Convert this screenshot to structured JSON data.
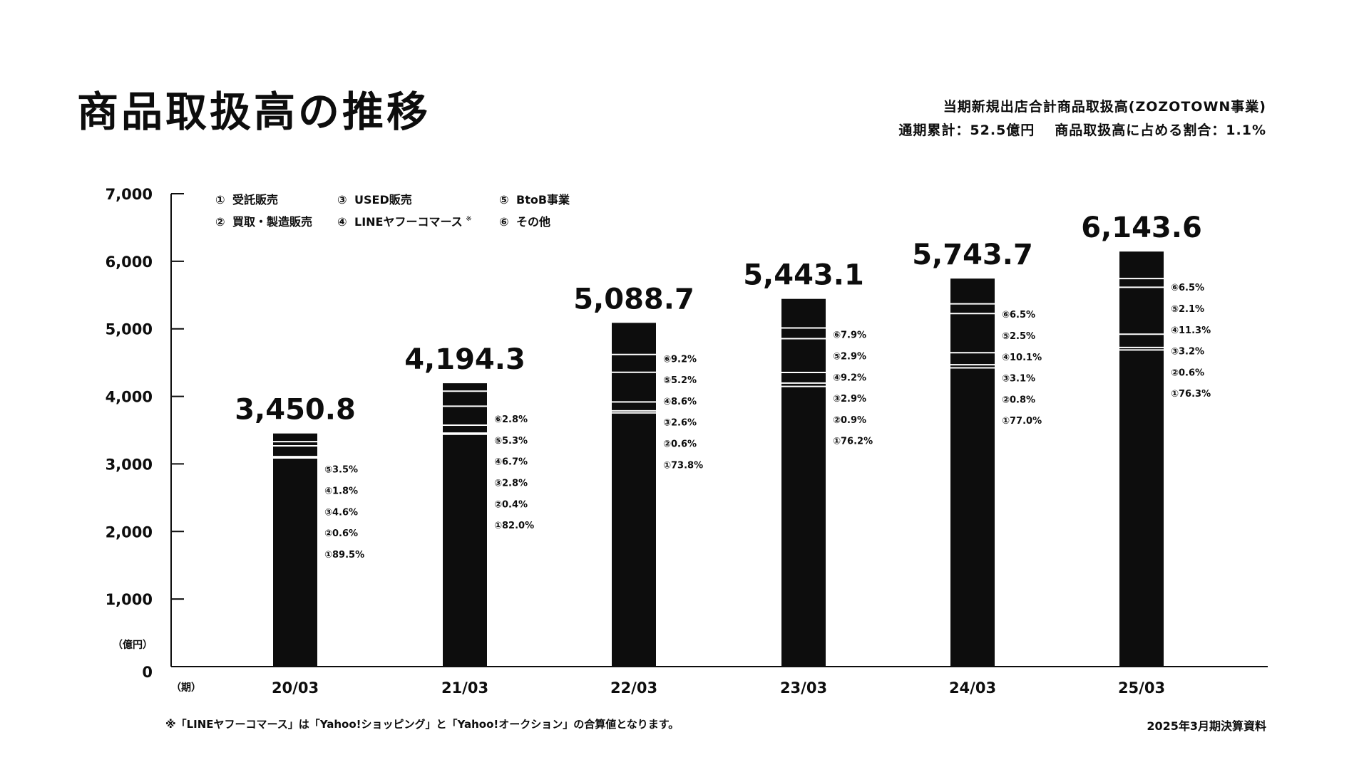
{
  "page": {
    "title": "商品取扱高の推移",
    "note_line1": "当期新規出店合計商品取扱高(ZOZOTOWN事業)",
    "note_line2_a": "通期累計：52.5億円",
    "note_line2_b": "商品取扱高に占める割合：1.1%",
    "footnote": "※「LINEヤフーコマース」は「Yahoo!ショッピング」と「Yahoo!オークション」の合算値となります。",
    "source": "2025年3月期決算資料"
  },
  "colors": {
    "bar": "#0d0d0d",
    "separator": "#ffffff",
    "text": "#0d0d0d"
  },
  "chart_data": {
    "type": "bar",
    "stacked": true,
    "unit_label": "（億円）",
    "period_label": "（期）",
    "ylim": [
      0,
      7000
    ],
    "yticks": [
      "0",
      "1,000",
      "2,000",
      "3,000",
      "4,000",
      "5,000",
      "6,000",
      "7,000"
    ],
    "categories": [
      "20/03",
      "21/03",
      "22/03",
      "23/03",
      "24/03",
      "25/03"
    ],
    "totals": [
      3450.8,
      4194.3,
      5088.7,
      5443.1,
      5743.7,
      6143.6
    ],
    "total_labels": [
      "3,450.8",
      "4,194.3",
      "5,088.7",
      "5,443.1",
      "5,743.7",
      "6,143.6"
    ],
    "legend": [
      {
        "mark": "①",
        "name": "受託販売"
      },
      {
        "mark": "②",
        "name": "買取・製造販売"
      },
      {
        "mark": "③",
        "name": "USED販売"
      },
      {
        "mark": "④",
        "name": "LINEヤフーコマース",
        "sup": "※"
      },
      {
        "mark": "⑤",
        "name": "BtoB事業"
      },
      {
        "mark": "⑥",
        "name": "その他"
      }
    ],
    "series_marks": [
      "①",
      "②",
      "③",
      "④",
      "⑤",
      "⑥"
    ],
    "series_names": [
      "受託販売",
      "買取・製造販売",
      "USED販売",
      "LINEヤフーコマース",
      "BtoB事業",
      "その他"
    ],
    "shares": [
      [
        89.5,
        0.6,
        4.6,
        1.8,
        3.5,
        null
      ],
      [
        82.0,
        0.4,
        2.8,
        6.7,
        5.3,
        2.8
      ],
      [
        73.8,
        0.6,
        2.6,
        8.6,
        5.2,
        9.2
      ],
      [
        76.2,
        0.9,
        2.9,
        9.2,
        2.9,
        7.9
      ],
      [
        77.0,
        0.8,
        3.1,
        10.1,
        2.5,
        6.5
      ],
      [
        76.3,
        0.6,
        3.2,
        11.3,
        2.1,
        6.5
      ]
    ],
    "share_labels": [
      [
        "①89.5%",
        "②0.6%",
        "③4.6%",
        "④1.8%",
        "⑤3.5%",
        null
      ],
      [
        "①82.0%",
        "②0.4%",
        "③2.8%",
        "④6.7%",
        "⑤5.3%",
        "⑥2.8%"
      ],
      [
        "①73.8%",
        "②0.6%",
        "③2.6%",
        "④8.6%",
        "⑤5.2%",
        "⑥9.2%"
      ],
      [
        "①76.2%",
        "②0.9%",
        "③2.9%",
        "④9.2%",
        "⑤2.9%",
        "⑥7.9%"
      ],
      [
        "①77.0%",
        "②0.8%",
        "③3.1%",
        "④10.1%",
        "⑤2.5%",
        "⑥6.5%"
      ],
      [
        "①76.3%",
        "②0.6%",
        "③3.2%",
        "④11.3%",
        "⑤2.1%",
        "⑥6.5%"
      ]
    ]
  }
}
